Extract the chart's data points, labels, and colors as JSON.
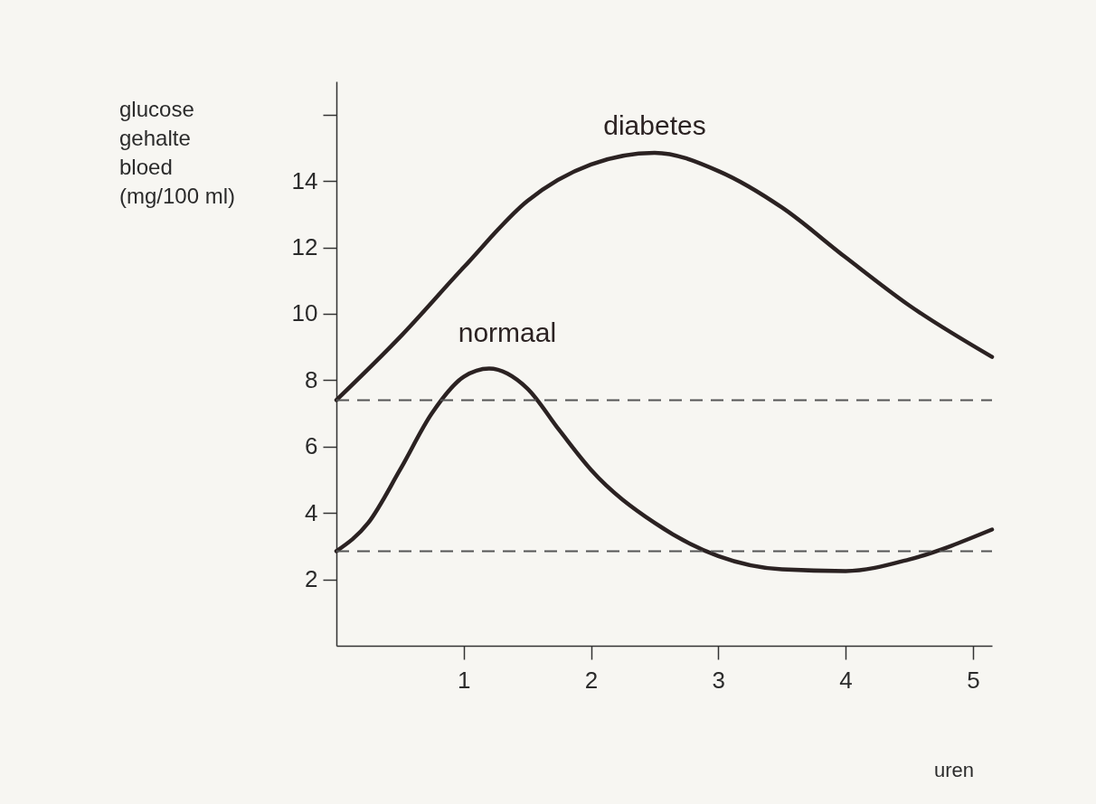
{
  "chart_data": {
    "type": "line",
    "xlabel": "uren",
    "ylabel": "glucose\ngehalte\nbloed\n(mg/100 ml)",
    "xlim": [
      0,
      5.15
    ],
    "xticks": [
      1,
      2,
      3,
      4,
      5
    ],
    "ylim": [
      0,
      17
    ],
    "yticks": [
      2,
      4,
      6,
      8,
      10,
      12,
      14,
      {
        "value": 16,
        "label": null
      }
    ],
    "grid": false,
    "marker": "none",
    "line_style": "solid",
    "series": [
      {
        "name": "diabetes",
        "color": "#2b2222",
        "x": [
          0,
          0.5,
          1,
          1.5,
          2,
          2.5,
          3,
          3.5,
          4,
          4.5,
          5.15
        ],
        "values": [
          7.4,
          9.3,
          11.4,
          13.4,
          14.5,
          14.85,
          14.3,
          13.2,
          11.7,
          10.25,
          8.7
        ]
      },
      {
        "name": "normaal",
        "color": "#2b2222",
        "x": [
          0,
          0.25,
          0.5,
          0.75,
          1,
          1.2,
          1.5,
          1.75,
          2,
          2.5,
          3,
          3.5,
          4,
          4.5,
          5.15
        ],
        "values": [
          2.85,
          3.7,
          5.3,
          7.0,
          8.1,
          8.35,
          7.75,
          6.5,
          5.3,
          3.7,
          2.7,
          2.3,
          2.25,
          2.6,
          3.5
        ]
      }
    ],
    "ref_lines": [
      {
        "axis": "y",
        "value": 7.4,
        "color": "#555555",
        "line_style": "dashed"
      },
      {
        "axis": "y",
        "value": 2.85,
        "color": "#555555",
        "line_style": "dashed"
      }
    ]
  }
}
